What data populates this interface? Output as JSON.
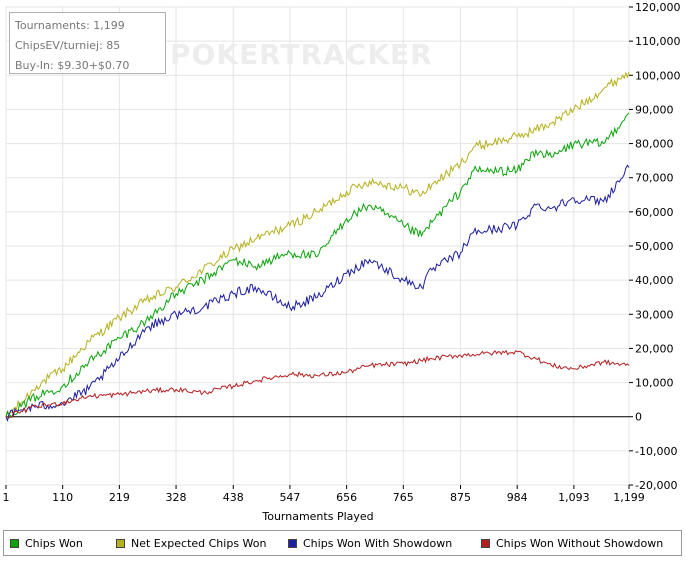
{
  "stats": {
    "tournaments": "Tournaments: 1,199",
    "chipsev": "ChipsEV/turniej: 85",
    "buyin": "Buy-In: $9.30+$0.70"
  },
  "watermark": {
    "poker": "POKER",
    "tracker": "TRACKER"
  },
  "legend": {
    "items": [
      {
        "label": "Chips Won",
        "color": "#0aa40a"
      },
      {
        "label": "Net Expected Chips Won",
        "color": "#b5b01e"
      },
      {
        "label": "Chips Won With Showdown",
        "color": "#1e1ea0"
      },
      {
        "label": "Chips Won Without Showdown",
        "color": "#b21e1e"
      }
    ]
  },
  "chart_data": {
    "type": "line",
    "xlabel": "Tournaments Played",
    "ylabel": "",
    "title": "",
    "xlim": [
      1,
      1199
    ],
    "ylim": [
      -20000,
      120000
    ],
    "x_ticks": [
      1,
      110,
      219,
      328,
      438,
      547,
      656,
      765,
      875,
      984,
      1093,
      1199
    ],
    "x_tick_labels": [
      "1",
      "110",
      "219",
      "328",
      "438",
      "547",
      "656",
      "765",
      "875",
      "984",
      "1,093",
      "1,199"
    ],
    "y_ticks": [
      -20000,
      -10000,
      0,
      10000,
      20000,
      30000,
      40000,
      50000,
      60000,
      70000,
      80000,
      90000,
      100000,
      110000,
      120000
    ],
    "y_tick_labels": [
      "-20,000",
      "-10,000",
      "0",
      "10,000",
      "20,000",
      "30,000",
      "40,000",
      "50,000",
      "60,000",
      "70,000",
      "80,000",
      "90,000",
      "100,000",
      "110,000",
      "120,000"
    ],
    "grid": true,
    "series": [
      {
        "name": "Net Expected Chips Won",
        "color": "#b5b01e",
        "x": [
          1,
          30,
          60,
          110,
          160,
          219,
          270,
          328,
          380,
          438,
          480,
          547,
          600,
          656,
          700,
          765,
          800,
          820,
          875,
          900,
          984,
          1050,
          1093,
          1150,
          1199
        ],
        "y": [
          0,
          4000,
          9000,
          14000,
          22000,
          29000,
          34000,
          38000,
          43000,
          49000,
          52000,
          56000,
          60000,
          66000,
          69000,
          67000,
          65000,
          68000,
          74000,
          79000,
          82000,
          86000,
          90000,
          96000,
          101000
        ]
      },
      {
        "name": "Chips Won",
        "color": "#0aa40a",
        "x": [
          1,
          30,
          60,
          110,
          160,
          219,
          270,
          328,
          380,
          438,
          480,
          547,
          600,
          656,
          700,
          765,
          800,
          820,
          875,
          900,
          984,
          1020,
          1050,
          1093,
          1150,
          1199
        ],
        "y": [
          0,
          3000,
          6000,
          9000,
          16000,
          23000,
          28000,
          36000,
          40000,
          46000,
          44000,
          48000,
          47000,
          58000,
          62000,
          56000,
          53000,
          57000,
          66000,
          72000,
          72000,
          78000,
          76000,
          80000,
          80000,
          89000
        ]
      },
      {
        "name": "Chips Won With Showdown",
        "color": "#1e1ea0",
        "x": [
          1,
          30,
          60,
          110,
          160,
          219,
          270,
          328,
          380,
          438,
          480,
          547,
          600,
          656,
          700,
          765,
          800,
          820,
          875,
          900,
          984,
          1020,
          1050,
          1093,
          1150,
          1199
        ],
        "y": [
          0,
          2000,
          3000,
          4000,
          8000,
          17000,
          26000,
          30000,
          32000,
          36000,
          38000,
          32000,
          35000,
          42000,
          46000,
          40000,
          38000,
          43000,
          48000,
          54000,
          56000,
          62000,
          61000,
          64000,
          63000,
          73000
        ]
      },
      {
        "name": "Chips Won Without Showdown",
        "color": "#b21e1e",
        "x": [
          1,
          30,
          60,
          110,
          160,
          219,
          270,
          328,
          380,
          438,
          480,
          547,
          600,
          656,
          700,
          765,
          820,
          875,
          920,
          984,
          1020,
          1050,
          1093,
          1150,
          1199
        ],
        "y": [
          0,
          1500,
          3000,
          4000,
          6000,
          6500,
          7500,
          8000,
          7000,
          9000,
          10500,
          12500,
          12000,
          13000,
          15000,
          15500,
          17000,
          18000,
          18500,
          19000,
          17000,
          15000,
          14000,
          16000,
          15000
        ]
      }
    ]
  }
}
